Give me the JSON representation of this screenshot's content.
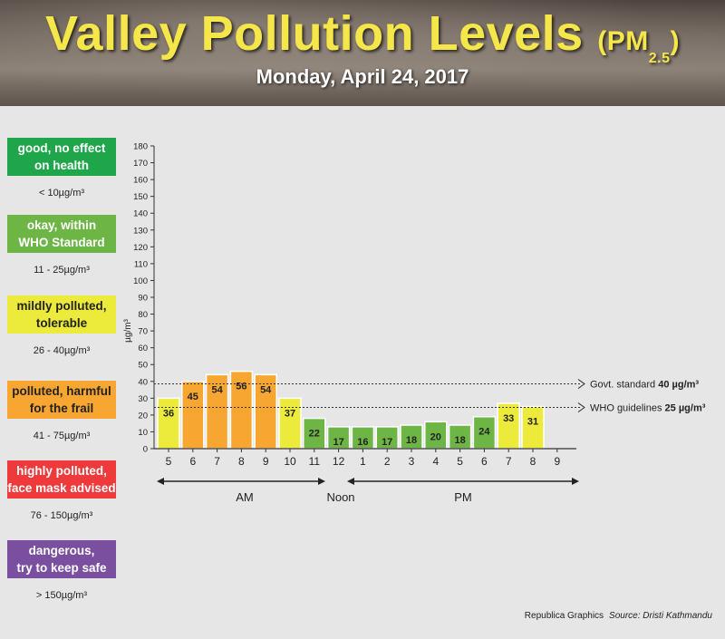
{
  "header": {
    "title": "Valley Pollution Levels",
    "title_pm": "(PM",
    "title_sub": "2.5",
    "title_close": ")",
    "subtitle": "Monday, April 24, 2017"
  },
  "legend": [
    {
      "label_line1": "good, no effect",
      "label_line2": "on health",
      "range": "< 10µg/m³",
      "color": "#1fa64a",
      "text_color": "#ffffff"
    },
    {
      "label_line1": "okay, within",
      "label_line2": "WHO Standard",
      "range": "11 - 25µg/m³",
      "color": "#6db545",
      "text_color": "#ffffff"
    },
    {
      "label_line1": "mildly polluted,",
      "label_line2": "tolerable",
      "range": "26 - 40µg/m³",
      "color": "#ecea3a",
      "text_color": "#222222"
    },
    {
      "label_line1": "polluted, harmful",
      "label_line2": "for the frail",
      "range": "41 - 75µg/m³",
      "color": "#f7a731",
      "text_color": "#222222"
    },
    {
      "label_line1": "highly polluted,",
      "label_line2": "face mask advised",
      "range": "76 - 150µg/m³",
      "color": "#ee3a3b",
      "text_color": "#ffffff"
    },
    {
      "label_line1": "dangerous,",
      "label_line2": "try to keep safe",
      "range": "> 150µg/m³",
      "color": "#7a4fa0",
      "text_color": "#ffffff"
    }
  ],
  "chart_data": {
    "type": "bar",
    "ylabel": "µg/m³",
    "ylim": [
      0,
      180
    ],
    "yticks": [
      0,
      10,
      20,
      30,
      40,
      50,
      60,
      70,
      80,
      90,
      100,
      110,
      120,
      130,
      140,
      150,
      160,
      170,
      180
    ],
    "categories": [
      "5",
      "6",
      "7",
      "8",
      "9",
      "10",
      "11",
      "12",
      "1",
      "2",
      "3",
      "4",
      "5",
      "6",
      "7",
      "8",
      "9"
    ],
    "values": [
      36,
      45,
      54,
      56,
      54,
      37,
      22,
      17,
      16,
      17,
      18,
      20,
      18,
      24,
      33,
      31,
      null
    ],
    "bar_labels": [
      "36",
      "45",
      "54",
      "56",
      "54",
      "37",
      "22",
      "17",
      "16",
      "17",
      "18",
      "20",
      "18",
      "24",
      "33",
      "31",
      ""
    ],
    "bar_heights_shown": [
      30,
      40,
      44,
      46,
      44,
      30,
      18,
      13,
      13,
      13,
      14,
      16,
      14,
      19,
      27,
      25,
      null
    ],
    "colors": {
      "good": "#1fa64a",
      "okay": "#6db545",
      "mild": "#ecea3a",
      "polluted": "#f7a731"
    },
    "reference_lines": [
      {
        "label": "Govt. standard",
        "value_label": "40 µg/m³",
        "value": 40
      },
      {
        "label": "WHO guidelines",
        "value_label": "25 µg/m³",
        "value": 25
      }
    ],
    "periods": {
      "am": "AM",
      "noon": "Noon",
      "pm": "PM"
    }
  },
  "footer": {
    "credit": "Republica Graphics",
    "source": "Source: Dristi Kathmandu"
  }
}
